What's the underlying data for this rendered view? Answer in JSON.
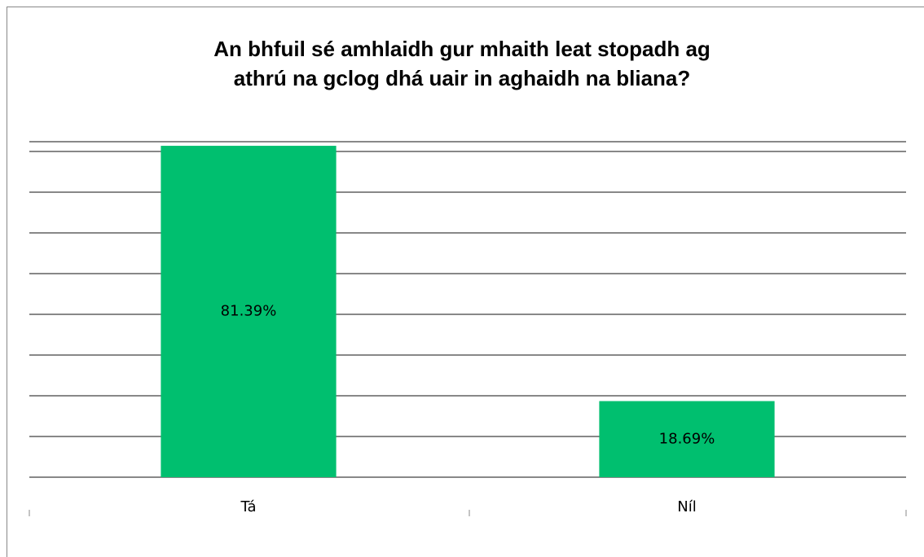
{
  "chart_data": {
    "type": "bar",
    "title": [
      "An bhfuil sé amhlaidh gur mhaith leat stopadh ag",
      "athrú na gclog dhá uair in aghaidh na bliana?"
    ],
    "categories": [
      "Tá",
      "Níl"
    ],
    "values": [
      81.39,
      18.69
    ],
    "value_labels": [
      "81.39%",
      "18.69%"
    ],
    "color": "#00bf6f",
    "ylim": [
      0,
      82.4
    ],
    "yticks": [
      0,
      10,
      20,
      30,
      40,
      50,
      60,
      70,
      80
    ],
    "grid": true
  }
}
